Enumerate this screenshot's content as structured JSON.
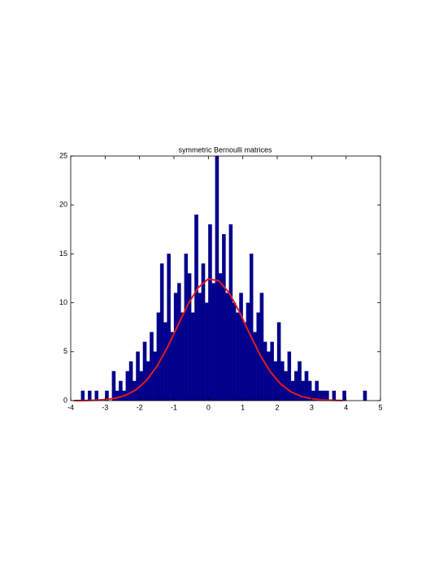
{
  "chart_data": {
    "type": "histogram",
    "title": "symmetric Bernoulli matrices",
    "bins": [
      -4.0,
      -3.9,
      -3.8,
      -3.7,
      -3.6,
      -3.5,
      -3.4,
      -3.3,
      -3.2,
      -3.1,
      -3.0,
      -2.9,
      -2.8,
      -2.7,
      -2.6,
      -2.5,
      -2.4,
      -2.3,
      -2.2,
      -2.1,
      -2.0,
      -1.9,
      -1.8,
      -1.7,
      -1.6,
      -1.5,
      -1.4,
      -1.3,
      -1.2,
      -1.1,
      -1.0,
      -0.9,
      -0.8,
      -0.7,
      -0.6,
      -0.5,
      -0.4,
      -0.3,
      -0.2,
      -0.1,
      0.0,
      0.1,
      0.2,
      0.3,
      0.4,
      0.5,
      0.6,
      0.7,
      0.8,
      0.9,
      1.0,
      1.1,
      1.2,
      1.3,
      1.4,
      1.5,
      1.6,
      1.7,
      1.8,
      1.9,
      2.0,
      2.1,
      2.2,
      2.3,
      2.4,
      2.5,
      2.6,
      2.7,
      2.8,
      2.9,
      3.0,
      3.1,
      3.2,
      3.3,
      3.4,
      3.5,
      3.6,
      3.7,
      3.8,
      3.9,
      4.0,
      4.1,
      4.2,
      4.3,
      4.4,
      4.5,
      4.6,
      4.7,
      4.8,
      4.9,
      5.0
    ],
    "values": [
      0,
      0,
      0,
      1,
      0,
      1,
      0,
      1,
      0,
      0,
      1,
      0,
      3,
      1,
      2,
      1,
      3,
      4,
      2,
      5,
      3,
      6,
      4,
      7,
      5,
      9,
      14,
      8,
      15,
      7,
      11,
      12,
      9,
      15,
      13,
      9,
      19,
      11,
      14,
      10,
      18,
      12,
      25,
      13,
      17,
      11,
      18,
      10,
      9,
      11,
      8,
      10,
      15,
      7,
      9,
      11,
      6,
      5,
      6,
      4,
      8,
      4,
      3,
      5,
      2,
      3,
      4,
      2,
      3,
      2,
      1,
      2,
      1,
      1,
      1,
      0,
      1,
      0,
      0,
      1,
      0,
      0,
      0,
      0,
      0,
      1,
      0,
      0,
      0,
      0
    ],
    "color": "#00008b",
    "curve": {
      "type": "line",
      "color": "#e41a1c",
      "x": [
        -3.9,
        -3.6,
        -3.3,
        -3.0,
        -2.7,
        -2.4,
        -2.1,
        -1.8,
        -1.5,
        -1.2,
        -0.9,
        -0.6,
        -0.3,
        0.0,
        0.3,
        0.6,
        0.9,
        1.2,
        1.5,
        1.8,
        2.1,
        2.4,
        2.7,
        3.0,
        3.3,
        3.6,
        3.9
      ],
      "values": [
        0.004,
        0.013,
        0.039,
        0.1,
        0.25,
        0.55,
        1.11,
        2.06,
        3.48,
        5.37,
        7.58,
        9.78,
        11.54,
        12.44,
        12.25,
        11.03,
        9.08,
        6.83,
        4.69,
        2.95,
        1.69,
        0.89,
        0.43,
        0.19,
        0.07,
        0.03,
        0.01
      ]
    },
    "xlim": [
      -4,
      5
    ],
    "xticks": [
      -4,
      -3,
      -2,
      -1,
      0,
      1,
      2,
      3,
      4,
      5
    ],
    "ylim": [
      0,
      25
    ],
    "yticks": [
      0,
      5,
      10,
      15,
      20,
      25
    ],
    "grid": false
  }
}
